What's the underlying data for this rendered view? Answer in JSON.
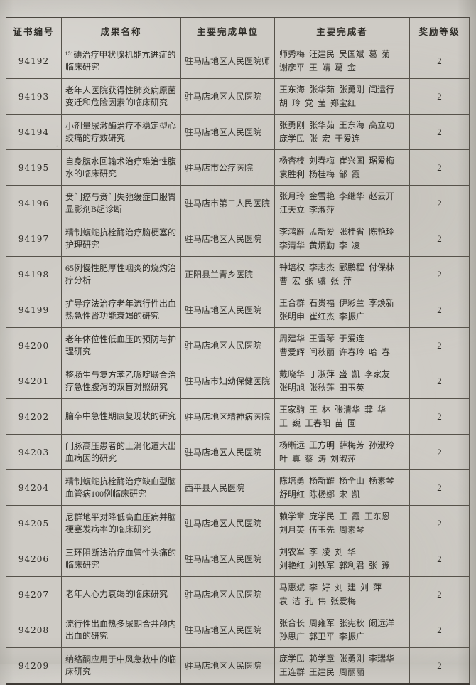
{
  "table": {
    "headers": [
      "证书编号",
      "成果名称",
      "主要完成单位",
      "主要完成者",
      "奖励等级"
    ],
    "rows": [
      {
        "id": "94192",
        "title": "¹⁵¹碘治疗甲状腺机能亢进症的临床研究",
        "unit": "驻马店地区人民医院师",
        "authors": [
          "师秀梅  汪建民  吴国斌  葛  菊",
          "谢彦平  王  靖  葛  金"
        ],
        "grade": "2"
      },
      {
        "id": "94193",
        "title": "老年人医院获得性肺炎病原菌变迁和危险因素的临床研究",
        "unit": "驻马店地区人民医院",
        "authors": [
          "王东海  张华茹  张勇刚  闫运行",
          "胡  玲  党  莹  郑宝红"
        ],
        "grade": "2"
      },
      {
        "id": "94194",
        "title": "小剂量尿激酶治疗不稳定型心绞痛的疗效研究",
        "unit": "驻马店地区人民医院",
        "authors": [
          "张勇刚  张华茹  王东海  高立功",
          "庞学民  张  宏  于爱连"
        ],
        "grade": "2"
      },
      {
        "id": "94195",
        "title": "自身腹水回输术治疗难治性腹水的临床研究",
        "unit": "驻马店市公疗医院",
        "authors": [
          "杨杏枝  刘春梅  崔兴国  琚爱梅",
          "袁胜利  杨桂梅  邹  霞"
        ],
        "grade": "2"
      },
      {
        "id": "94196",
        "title": "贲门癌与贲门失弛缓症口服胃显影剂B超诊断",
        "unit": "驻马店市第二人民医院",
        "authors": [
          "张月玲  金雪艳  李继华  赵云开",
          "江天立  李淑萍"
        ],
        "grade": "2"
      },
      {
        "id": "94197",
        "title": "精制蝮蛇抗栓酶治疗脑梗塞的护理研究",
        "unit": "驻马店地区人民医院",
        "authors": [
          "李鸿雁  孟新爱  张桂省  陈艳玲",
          "李清华  黄炳勤  李  凌"
        ],
        "grade": "2"
      },
      {
        "id": "94198",
        "title": "65例慢性肥厚性咽炎的烧灼治疗分析",
        "unit": "正阳县兰青乡医院",
        "authors": [
          "钟培权  李志杰  郾鹏程  付保林",
          "曹  宏  张  骥  张  萍"
        ],
        "grade": "2"
      },
      {
        "id": "94199",
        "title": "扩导疗法治疗老年流行性出血热急性肾功能衰竭的研究",
        "unit": "驻马店地区人民医院",
        "authors": [
          "王合群  石贵福  伊彩兰  李焕新",
          "张明申  崔红杰  李振广"
        ],
        "grade": "2"
      },
      {
        "id": "94200",
        "title": "老年体位性低血压的预防与护理研究",
        "unit": "驻马店地区人民医院",
        "authors": [
          "周建华  王雪琴  于爱连",
          "曹爱辉  闫秋丽  许春玲  哈  春"
        ],
        "grade": "2"
      },
      {
        "id": "94201",
        "title": "整肠生与复方苯乙哌啶联合治疗急性腹泻的双盲对照研究",
        "unit": "驻马店市妇幼保健医院",
        "authors": [
          "戴晓华  丁淑萍  盛  凯  李家友",
          "张明旭  张秋莲  田玉英"
        ],
        "grade": "2"
      },
      {
        "id": "94202",
        "title": "脑卒中急性期康复现状的研究",
        "unit": "驻马店地区精神病医院",
        "authors": [
          "王家驹  王  林  张清华  龚  华",
          "王  巍  王春阳  苗  圃"
        ],
        "grade": "2"
      },
      {
        "id": "94203",
        "title": "门脉高压患者的上消化道大出血病因的研究",
        "unit": "驻马店地区人民医院",
        "authors": [
          "杨晰远  王方明  薛梅芳  孙淑玲",
          "叶  真  蔡  涛  刘淑萍"
        ],
        "grade": "2"
      },
      {
        "id": "94204",
        "title": "精制蝮蛇抗栓酶治疗缺血型脑血管病100例临床研究",
        "unit": "西平县人民医院",
        "authors": [
          "陈培勇  杨新耀  杨全山  杨素琴",
          "舒明红  陈杨娜  宋  凯"
        ],
        "grade": "2"
      },
      {
        "id": "94205",
        "title": "尼群地平对降低高血压病并脑梗塞发病率的临床研究",
        "unit": "驻马店地区人民医院",
        "authors": [
          "赖学章  庞学民  王  霞  王东恩",
          "刘月英  伍玉先  周素琴"
        ],
        "grade": "2"
      },
      {
        "id": "94206",
        "title": "三环阻断法治疗血管性头痛的临床研究",
        "unit": "驻马店地区人民医院",
        "authors": [
          "刘农军  李  凌  刘  华",
          "刘艳红  刘铁军  郭利君  张  豫"
        ],
        "grade": "2"
      },
      {
        "id": "94207",
        "title": "老年人心力衰竭的临床研究",
        "unit": "驻马店地区人民医院",
        "authors": [
          "马惠斌  李  好  刘  建  刘  萍",
          "袁  洁  孔  伟  张爱梅"
        ],
        "grade": "2"
      },
      {
        "id": "94208",
        "title": "流行性出血热多尿期合并颅内出血的研究",
        "unit": "驻马店地区人民医院",
        "authors": [
          "张合长  周雍军  张宪秋  阚远洋",
          "孙思广  郭卫平  李振广"
        ],
        "grade": "2"
      },
      {
        "id": "94209",
        "title": "纳络酮应用于中风急救中的临床研究",
        "unit": "驻马店地区人民医院",
        "authors": [
          "庞学民  赖学章  张勇刚  李瑞华",
          "王连群  王建民  周丽丽"
        ],
        "grade": "2"
      }
    ]
  }
}
